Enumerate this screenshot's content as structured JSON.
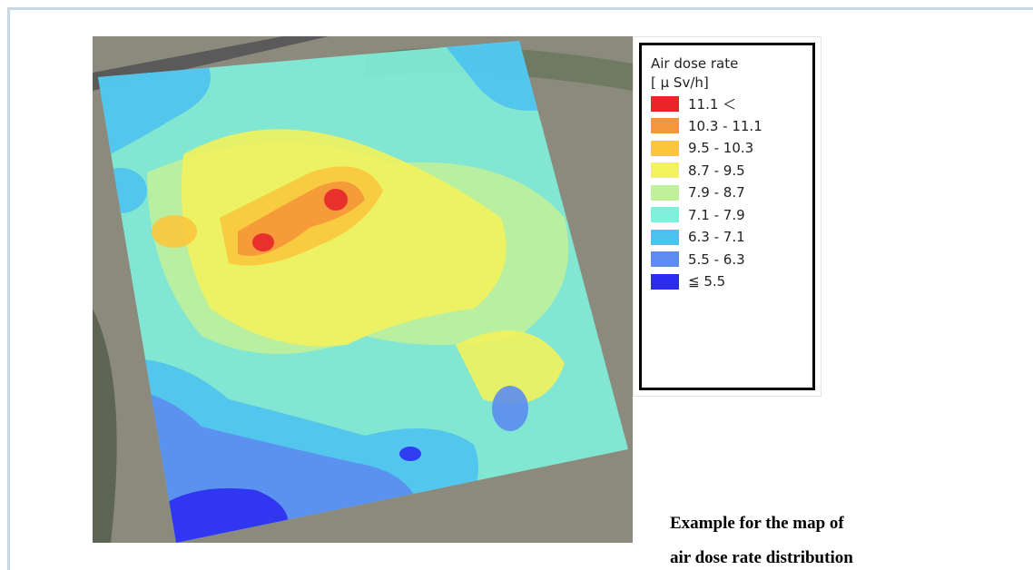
{
  "legend": {
    "title": "Air dose rate",
    "unit": "[ μ Sv/h]",
    "items": [
      {
        "label": "11.1 ＜",
        "color": "#e8262a"
      },
      {
        "label": "10.3 - 11.1",
        "color": "#f5963a"
      },
      {
        "label": "9.5 - 10.3",
        "color": "#fbc63c"
      },
      {
        "label": "8.7 - 9.5",
        "color": "#f2f25c"
      },
      {
        "label": "7.9 - 8.7",
        "color": "#bff09a"
      },
      {
        "label": "7.1 - 7.9",
        "color": "#7ff0dc"
      },
      {
        "label": "6.3 - 7.1",
        "color": "#4cc2ee"
      },
      {
        "label": "5.5 - 6.3",
        "color": "#5c8cf0"
      },
      {
        "label": "≦ 5.5",
        "color": "#2c2cf0"
      }
    ]
  },
  "caption": {
    "line1": "Example for the map of",
    "line2": "air dose rate distribution"
  }
}
